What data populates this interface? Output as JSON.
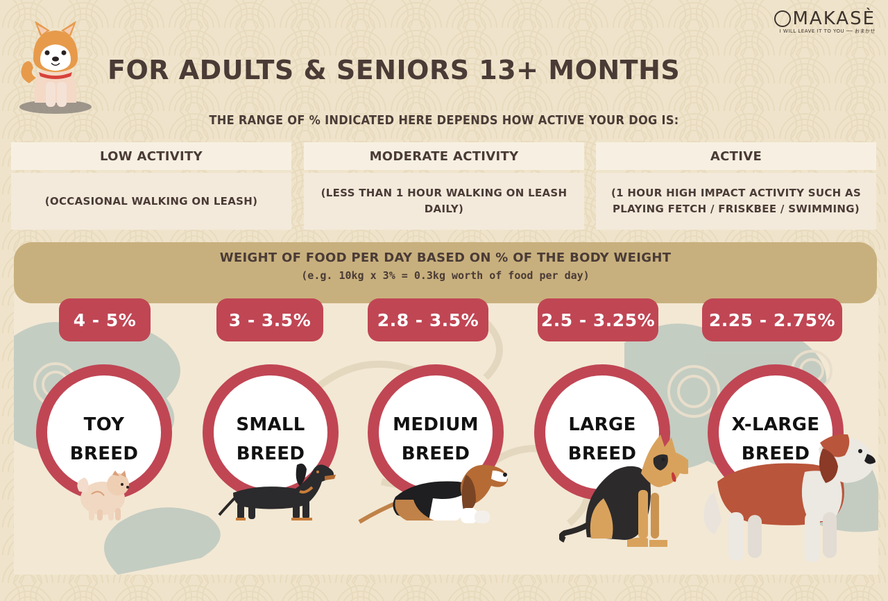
{
  "logo": {
    "text": "MAKASÈ",
    "tagline": "I WILL LEAVE IT TO YOU ── おまかせ"
  },
  "title": "FOR ADULTS & SENIORS 13+ MONTHS",
  "subtitle": "THE RANGE OF % INDICATED HERE DEPENDS HOW ACTIVE YOUR DOG IS:",
  "activity_levels": [
    {
      "label": "LOW ACTIVITY",
      "desc": "(OCCASIONAL WALKING ON LEASH)"
    },
    {
      "label": "MODERATE ACTIVITY",
      "desc": "(LESS THAN 1 HOUR WALKING ON LEASH DAILY)"
    },
    {
      "label": "ACTIVE",
      "desc": "(1 HOUR HIGH IMPACT ACTIVITY SUCH AS PLAYING FETCH / FRISKBEE / SWIMMING)"
    }
  ],
  "food_banner": {
    "line1": "WEIGHT OF FOOD PER DAY BASED ON % OF THE BODY WEIGHT",
    "line2": "(e.g. 10kg x 3% = 0.3kg worth of food per day)"
  },
  "breeds": [
    {
      "pct": "4 - 5%",
      "line1": "TOY",
      "line2": "BREED",
      "icon": "pomeranian-icon"
    },
    {
      "pct": "3 - 3.5%",
      "line1": "SMALL",
      "line2": "BREED",
      "icon": "dachshund-icon"
    },
    {
      "pct": "2.8 - 3.5%",
      "line1": "MEDIUM",
      "line2": "BREED",
      "icon": "basset-hound-icon"
    },
    {
      "pct": "2.5 - 3.25%",
      "line1": "LARGE",
      "line2": "BREED",
      "icon": "german-shepherd-icon"
    },
    {
      "pct": "2.25 - 2.75%",
      "line1": "X-LARGE",
      "line2": "BREED",
      "icon": "saint-bernard-icon"
    }
  ],
  "colors": {
    "accent": "#c04654",
    "banner": "#c8b07e",
    "text": "#4a3b36",
    "background": "#efe4cb"
  }
}
